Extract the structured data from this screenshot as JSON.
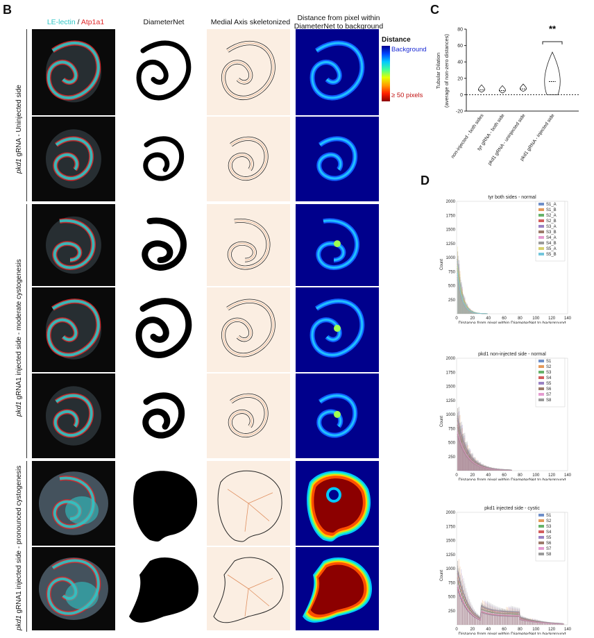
{
  "panel_b": {
    "letter": "B",
    "col_headers": {
      "stain_a": "LE-lectin",
      "stain_sep": " / ",
      "stain_b": "Atp1a1",
      "diameternet": "DiameterNet",
      "medial_axis": "Medial Axis skeletonized",
      "distance_line1": "Distance from pixel within",
      "distance_line2": "DiameterNet to background"
    },
    "colorbar": {
      "title": "Distance",
      "top": "Background",
      "bottom": "≥ 50 pixels"
    },
    "group_labels": {
      "g1_italic": "pkd1",
      "g1_rest": " gRNA - Uninjected side",
      "g2_italic": "pkd1",
      "g2_rest": " gRNA1 injected side - moderate cystogenesis",
      "g3_italic": "pkd1",
      "g3_rest": " gRNA1 injected side - pronounced cystogenesis"
    },
    "stain_colors": {
      "lectin": "#2ec4c4",
      "atp1a1": "#e0282a"
    }
  },
  "panel_c": {
    "letter": "C",
    "chart_data": {
      "type": "violin",
      "ylabel_line1": "Tubular Dilation",
      "ylabel_line2": "(average of non-zero distances)",
      "ylim": [
        -20,
        80
      ],
      "yticks": [
        "80",
        "60",
        "40",
        "20",
        "0",
        "-20"
      ],
      "categories": [
        "non-injected - both sides",
        "tyr gRNA - both side",
        "pkd1 gRNA - uninjected side",
        "pkd1 gRNA - injected side"
      ],
      "medians": [
        6,
        5,
        7,
        16
      ],
      "significance": "**"
    }
  },
  "panel_d": {
    "letter": "D",
    "chart_data": [
      {
        "type": "histogram",
        "title": "tyr both sides - normal",
        "xlabel": "Distance from pixel within DiameterNet to background",
        "ylabel": "Count",
        "xlim": [
          0,
          140
        ],
        "ylim": [
          0,
          2000
        ],
        "xticks": [
          "0",
          "20",
          "40",
          "60",
          "80",
          "100",
          "120",
          "140"
        ],
        "yticks": [
          "250",
          "500",
          "750",
          "1000",
          "1250",
          "1500",
          "1750",
          "2000"
        ],
        "series": [
          {
            "name": "S1_A",
            "color": "#6f8fc9"
          },
          {
            "name": "S1_B",
            "color": "#e59a5b"
          },
          {
            "name": "S2_A",
            "color": "#67b36a"
          },
          {
            "name": "S2_B",
            "color": "#d35d5d"
          },
          {
            "name": "S3_A",
            "color": "#9a82c4"
          },
          {
            "name": "S3_B",
            "color": "#9c7a6a"
          },
          {
            "name": "S4_A",
            "color": "#e59bd0"
          },
          {
            "name": "S4_B",
            "color": "#9a9a9a"
          },
          {
            "name": "S5_A",
            "color": "#d6cf6c"
          },
          {
            "name": "S5_B",
            "color": "#72c6dc"
          }
        ]
      },
      {
        "type": "histogram",
        "title": "pkd1 non-injected side - normal",
        "xlabel": "Distance from pixel within DiameterNet to background",
        "ylabel": "Count",
        "xlim": [
          0,
          140
        ],
        "ylim": [
          0,
          2000
        ],
        "xticks": [
          "0",
          "20",
          "40",
          "60",
          "80",
          "100",
          "120",
          "140"
        ],
        "yticks": [
          "250",
          "500",
          "750",
          "1000",
          "1250",
          "1500",
          "1750",
          "2000"
        ],
        "series": [
          {
            "name": "S1",
            "color": "#6f8fc9"
          },
          {
            "name": "S2",
            "color": "#e59a5b"
          },
          {
            "name": "S3",
            "color": "#67b36a"
          },
          {
            "name": "S4",
            "color": "#d35d5d"
          },
          {
            "name": "S5",
            "color": "#9a82c4"
          },
          {
            "name": "S6",
            "color": "#9c7a6a"
          },
          {
            "name": "S7",
            "color": "#e59bd0"
          },
          {
            "name": "S8",
            "color": "#9a9a9a"
          }
        ]
      },
      {
        "type": "histogram",
        "title": "pkd1 injected side - cystic",
        "xlabel": "Distance from pixel within DiameterNet to background",
        "ylabel": "Count",
        "xlim": [
          0,
          140
        ],
        "ylim": [
          0,
          2000
        ],
        "xticks": [
          "0",
          "20",
          "40",
          "60",
          "80",
          "100",
          "120",
          "140"
        ],
        "yticks": [
          "250",
          "500",
          "750",
          "1000",
          "1250",
          "1500",
          "1750",
          "2000"
        ],
        "series": [
          {
            "name": "S1",
            "color": "#6f8fc9"
          },
          {
            "name": "S2",
            "color": "#e59a5b"
          },
          {
            "name": "S3",
            "color": "#67b36a"
          },
          {
            "name": "S4",
            "color": "#d35d5d"
          },
          {
            "name": "S5",
            "color": "#9a82c4"
          },
          {
            "name": "S6",
            "color": "#9c7a6a"
          },
          {
            "name": "S7",
            "color": "#e59bd0"
          },
          {
            "name": "S8",
            "color": "#9a9a9a"
          }
        ]
      }
    ]
  }
}
